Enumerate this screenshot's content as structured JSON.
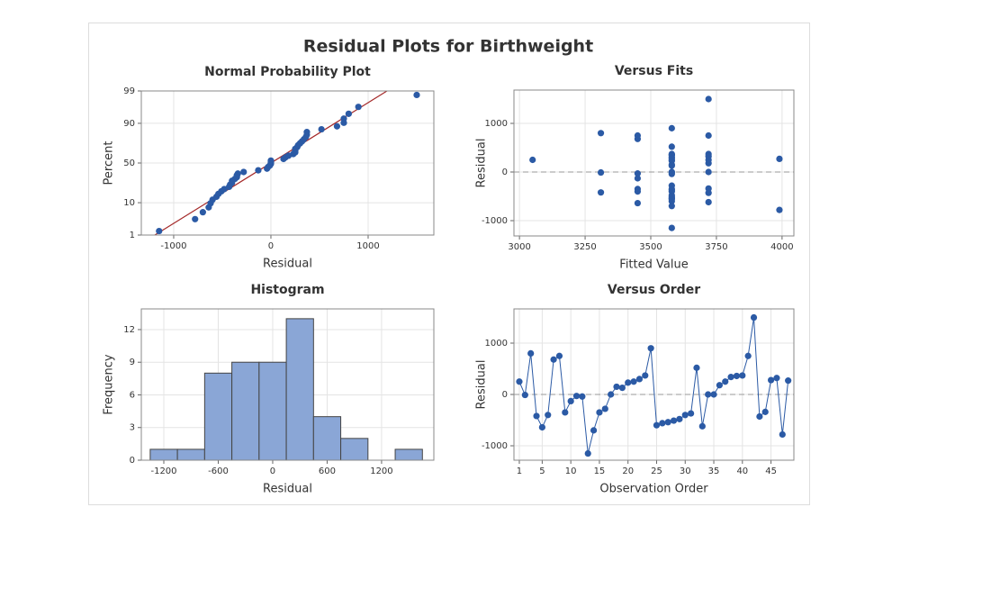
{
  "title": "Residual Plots for Birthweight",
  "chart_data": [
    {
      "type": "scatter",
      "title": "Normal Probability Plot",
      "xlabel": "Residual",
      "ylabel": "Percent",
      "yscale": "normal-probability",
      "color": "#2b5aa5",
      "grid": true,
      "x": [
        -1150,
        -780,
        -700,
        -640,
        -620,
        -600,
        -560,
        -540,
        -510,
        -480,
        -430,
        -420,
        -400,
        -400,
        -370,
        -350,
        -350,
        -340,
        -280,
        -130,
        -40,
        -30,
        -10,
        0,
        0,
        0,
        130,
        150,
        180,
        230,
        250,
        250,
        250,
        270,
        280,
        300,
        320,
        340,
        360,
        370,
        370,
        520,
        680,
        750,
        750,
        800,
        900,
        1500
      ],
      "values": [
        1.4,
        3.5,
        5.6,
        7.6,
        9.7,
        11.8,
        13.8,
        15.9,
        18.0,
        20.0,
        22.1,
        24.2,
        26.2,
        28.3,
        30.4,
        32.4,
        34.5,
        36.6,
        38.6,
        40.7,
        42.8,
        44.8,
        46.9,
        49.0,
        51.0,
        53.1,
        55.2,
        57.2,
        59.3,
        61.4,
        63.4,
        65.5,
        67.6,
        69.6,
        71.7,
        73.8,
        75.8,
        77.9,
        80.0,
        82.0,
        84.1,
        86.2,
        88.2,
        90.3,
        92.4,
        94.4,
        96.5,
        98.6
      ],
      "fit_line": {
        "x": [
          -1194,
          1194
        ],
        "values": [
          1,
          99
        ],
        "color": "#a52a2a"
      },
      "xlim": [
        -1333,
        1676
      ],
      "xticks": [
        -1000,
        0,
        1000
      ],
      "ylim": [
        1,
        99
      ],
      "yticks": [
        1,
        10,
        50,
        90,
        99
      ]
    },
    {
      "type": "scatter",
      "title": "Versus Fits",
      "xlabel": "Fitted Value",
      "ylabel": "Residual",
      "color": "#2b5aa5",
      "grid": true,
      "reference_y": 0,
      "x": [
        3050,
        3310,
        3310,
        3310,
        3450,
        3450,
        3450,
        3450,
        3450,
        3450,
        3450,
        3580,
        3580,
        3580,
        3580,
        3580,
        3580,
        3580,
        3580,
        3580,
        3580,
        3580,
        3580,
        3580,
        3580,
        3580,
        3580,
        3580,
        3580,
        3580,
        3580,
        3580,
        3720,
        3720,
        3580,
        3720,
        3720,
        3580,
        3580,
        3720,
        3720,
        3720,
        3720,
        3720,
        3580,
        3720,
        3990,
        3990
      ],
      "values": [
        250,
        -10,
        800,
        -420,
        -640,
        -400,
        680,
        750,
        -350,
        -130,
        -30,
        -40,
        -1150,
        -700,
        -350,
        -280,
        0,
        150,
        130,
        230,
        250,
        300,
        370,
        900,
        -600,
        -560,
        -540,
        -510,
        -480,
        -400,
        -370,
        520,
        -620,
        0,
        0,
        180,
        250,
        340,
        360,
        370,
        750,
        1500,
        -430,
        -340,
        280,
        320,
        -780,
        270
      ],
      "xlim": [
        2979,
        4045
      ],
      "xticks": [
        3000,
        3250,
        3500,
        3750,
        4000
      ],
      "ylim": [
        -1315,
        1685
      ],
      "yticks": [
        -1000,
        0,
        1000
      ]
    },
    {
      "type": "histogram",
      "title": "Histogram",
      "xlabel": "Residual",
      "ylabel": "Frequency",
      "color": "#8aa6d6",
      "grid": true,
      "bins": [
        -1350,
        -1050,
        -750,
        -450,
        -150,
        150,
        450,
        750,
        1050,
        1350,
        1650
      ],
      "values": [
        1,
        1,
        8,
        9,
        9,
        13,
        4,
        2,
        0,
        1
      ],
      "xlim": [
        -1448,
        1776
      ],
      "xticks": [
        -1200,
        -600,
        0,
        600,
        1200
      ],
      "ylim": [
        0,
        13.9
      ],
      "yticks": [
        0,
        3,
        6,
        9,
        12
      ]
    },
    {
      "type": "line",
      "title": "Versus Order",
      "xlabel": "Observation Order",
      "ylabel": "Residual",
      "color": "#2b5aa5",
      "grid": true,
      "reference_y": 0,
      "x": [
        1,
        2,
        3,
        4,
        5,
        6,
        7,
        8,
        9,
        10,
        11,
        12,
        13,
        14,
        15,
        16,
        17,
        18,
        19,
        20,
        21,
        22,
        23,
        24,
        25,
        26,
        27,
        28,
        29,
        30,
        31,
        32,
        33,
        34,
        35,
        36,
        37,
        38,
        39,
        40,
        41,
        42,
        43,
        44,
        45,
        46,
        47,
        48
      ],
      "values": [
        250,
        -10,
        800,
        -420,
        -640,
        -400,
        680,
        750,
        -350,
        -130,
        -30,
        -40,
        -1150,
        -700,
        -350,
        -280,
        0,
        150,
        130,
        230,
        250,
        300,
        370,
        900,
        -600,
        -560,
        -540,
        -510,
        -480,
        -400,
        -370,
        520,
        -620,
        0,
        0,
        180,
        250,
        340,
        360,
        370,
        750,
        1500,
        -430,
        -340,
        280,
        320,
        -780,
        270
      ],
      "xlim": [
        0.06,
        49
      ],
      "xticks": [
        1,
        5,
        10,
        15,
        20,
        25,
        30,
        35,
        40,
        45
      ],
      "ylim": [
        -1281,
        1667
      ],
      "yticks": [
        -1000,
        0,
        1000
      ]
    }
  ]
}
